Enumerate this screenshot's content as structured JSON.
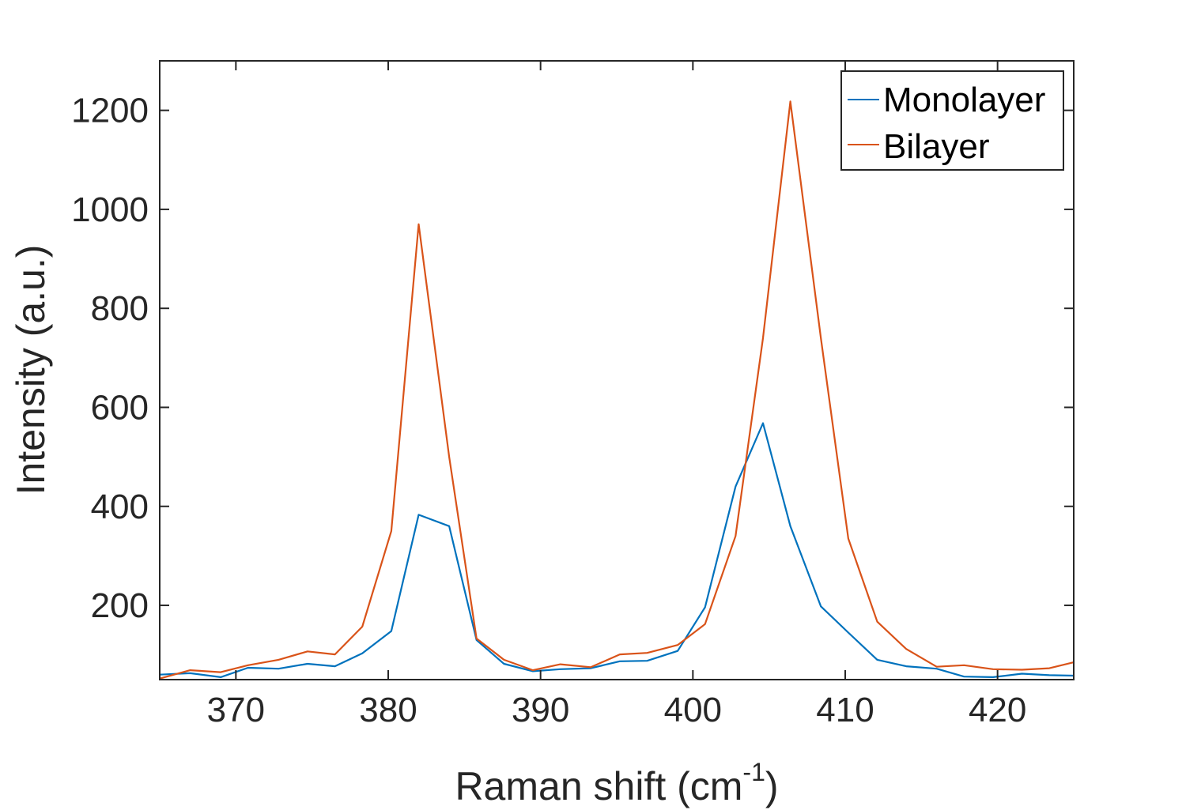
{
  "chart_data": {
    "type": "line",
    "xlabel": "Raman shift (cm",
    "xlabel_superscript": "-1",
    "xlabel_suffix": ")",
    "ylabel": "Intensity (a.u.)",
    "xlim": [
      365,
      425
    ],
    "ylim": [
      50,
      1300
    ],
    "xticks": [
      370,
      380,
      390,
      400,
      410,
      420
    ],
    "yticks": [
      200,
      400,
      600,
      800,
      1000,
      1200
    ],
    "xtick_labels": [
      "370",
      "380",
      "390",
      "400",
      "410",
      "420"
    ],
    "ytick_labels": [
      "200",
      "400",
      "600",
      "800",
      "1000",
      "1200"
    ],
    "grid": false,
    "legend_position": "top-right",
    "series": [
      {
        "name": "Monolayer",
        "color": "#0072BD",
        "x": [
          365,
          367,
          369,
          370.8,
          372.8,
          374.7,
          376.5,
          378.3,
          380.2,
          382,
          384,
          385.8,
          387.6,
          389.5,
          391.3,
          393.3,
          395.2,
          397,
          399,
          400.8,
          402.8,
          404.6,
          406.4,
          408.4,
          410.2,
          412.1,
          414,
          416,
          417.8,
          419.7,
          421.6,
          423.4,
          425
        ],
        "values": [
          60,
          63,
          55,
          74,
          72,
          82,
          77,
          103,
          148,
          383,
          360,
          130,
          82,
          67,
          71,
          73,
          87,
          88,
          108,
          196,
          440,
          568,
          360,
          198,
          145,
          90,
          77,
          72,
          56,
          55,
          62,
          59,
          58
        ]
      },
      {
        "name": "Bilayer",
        "color": "#D95319",
        "x": [
          365,
          367,
          369,
          370.8,
          372.8,
          374.7,
          376.5,
          378.3,
          380.2,
          382,
          384,
          385.8,
          387.6,
          389.5,
          391.3,
          393.3,
          395.2,
          397,
          399,
          400.8,
          402.8,
          404.6,
          406.4,
          408.4,
          410.2,
          412.1,
          414,
          416,
          417.8,
          419.7,
          421.6,
          423.4,
          425
        ],
        "values": [
          52,
          69,
          65,
          79,
          90,
          107,
          101,
          157,
          350,
          970,
          500,
          133,
          90,
          69,
          81,
          75,
          101,
          104,
          120,
          162,
          340,
          740,
          1218,
          740,
          335,
          167,
          112,
          76,
          79,
          71,
          70,
          73,
          85
        ]
      }
    ]
  }
}
